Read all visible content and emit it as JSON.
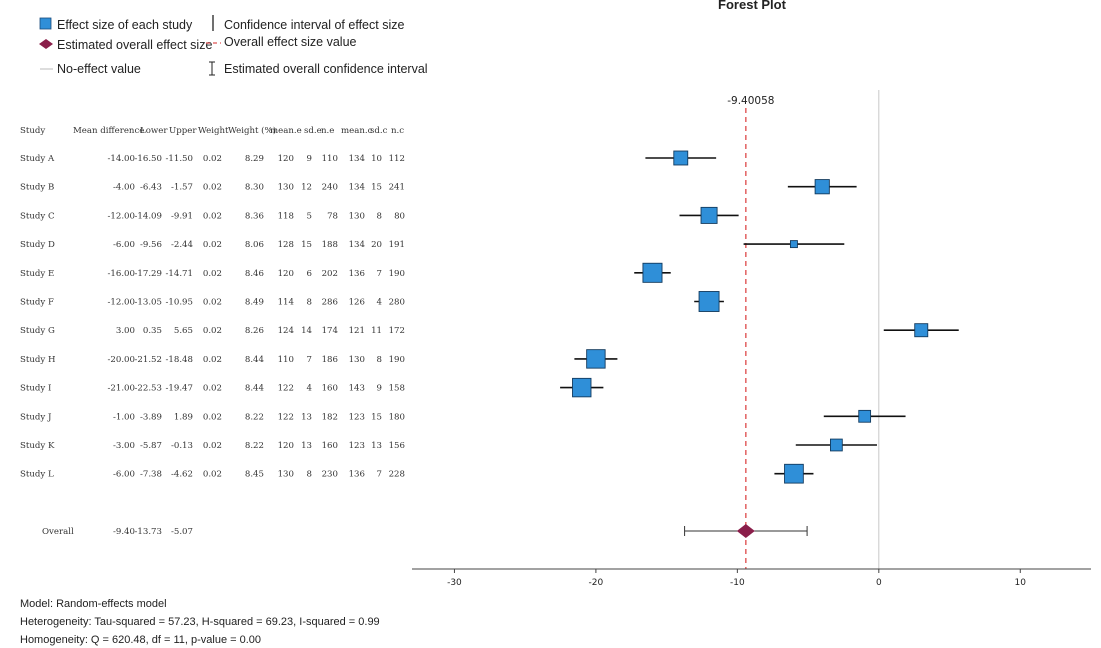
{
  "legend": {
    "effect_size": "Effect size of each study",
    "overall_effect": "Estimated overall effect size",
    "no_effect": "No-effect value",
    "ci": "Confidence interval of effect size",
    "overall_value": "Overall effect size value",
    "overall_ci": "Estimated overall confidence interval"
  },
  "colors": {
    "study_box": "#2f8fd8",
    "diamond": "#8a1e4a",
    "overall_line": "#e05555",
    "no_effect_line": "#c8c8c8"
  },
  "table": {
    "headers": [
      "Study",
      "Mean difference",
      "Lower",
      "Upper",
      "Weight",
      "Weight (%)",
      "mean.e",
      "sd.e",
      "n.e",
      "mean.c",
      "sd.c",
      "n.c"
    ],
    "rows": [
      [
        "Study A",
        "-14.00",
        "-16.50",
        "-11.50",
        "0.02",
        "8.29",
        "120",
        "9",
        "110",
        "134",
        "10",
        "112"
      ],
      [
        "Study B",
        "-4.00",
        "-6.43",
        "-1.57",
        "0.02",
        "8.30",
        "130",
        "12",
        "240",
        "134",
        "15",
        "241"
      ],
      [
        "Study C",
        "-12.00",
        "-14.09",
        "-9.91",
        "0.02",
        "8.36",
        "118",
        "5",
        "78",
        "130",
        "8",
        "80"
      ],
      [
        "Study D",
        "-6.00",
        "-9.56",
        "-2.44",
        "0.02",
        "8.06",
        "128",
        "15",
        "188",
        "134",
        "20",
        "191"
      ],
      [
        "Study E",
        "-16.00",
        "-17.29",
        "-14.71",
        "0.02",
        "8.46",
        "120",
        "6",
        "202",
        "136",
        "7",
        "190"
      ],
      [
        "Study F",
        "-12.00",
        "-13.05",
        "-10.95",
        "0.02",
        "8.49",
        "114",
        "8",
        "286",
        "126",
        "4",
        "280"
      ],
      [
        "Study G",
        "3.00",
        "0.35",
        "5.65",
        "0.02",
        "8.26",
        "124",
        "14",
        "174",
        "121",
        "11",
        "172"
      ],
      [
        "Study H",
        "-20.00",
        "-21.52",
        "-18.48",
        "0.02",
        "8.44",
        "110",
        "7",
        "186",
        "130",
        "8",
        "190"
      ],
      [
        "Study I",
        "-21.00",
        "-22.53",
        "-19.47",
        "0.02",
        "8.44",
        "122",
        "4",
        "160",
        "143",
        "9",
        "158"
      ],
      [
        "Study J",
        "-1.00",
        "-3.89",
        "1.89",
        "0.02",
        "8.22",
        "122",
        "13",
        "182",
        "123",
        "15",
        "180"
      ],
      [
        "Study K",
        "-3.00",
        "-5.87",
        "-0.13",
        "0.02",
        "8.22",
        "120",
        "13",
        "160",
        "123",
        "13",
        "156"
      ],
      [
        "Study L",
        "-6.00",
        "-7.38",
        "-4.62",
        "0.02",
        "8.45",
        "130",
        "8",
        "230",
        "136",
        "7",
        "228"
      ]
    ],
    "overall": [
      "Overall",
      "-9.40",
      "-13.73",
      "-5.07"
    ]
  },
  "chart_data": {
    "type": "scatter",
    "title": "Forest Plot",
    "xlim": [
      -33,
      15
    ],
    "xticks": [
      -30,
      -20,
      -10,
      0,
      10
    ],
    "no_effect_value": 0,
    "overall_effect_label": "-9.40058",
    "studies": [
      {
        "name": "Study A",
        "effect": -14.0,
        "lower": -16.5,
        "upper": -11.5,
        "weight_pct": 8.29
      },
      {
        "name": "Study B",
        "effect": -4.0,
        "lower": -6.43,
        "upper": -1.57,
        "weight_pct": 8.3
      },
      {
        "name": "Study C",
        "effect": -12.0,
        "lower": -14.09,
        "upper": -9.91,
        "weight_pct": 8.36
      },
      {
        "name": "Study D",
        "effect": -6.0,
        "lower": -9.56,
        "upper": -2.44,
        "weight_pct": 8.06
      },
      {
        "name": "Study E",
        "effect": -16.0,
        "lower": -17.29,
        "upper": -14.71,
        "weight_pct": 8.46
      },
      {
        "name": "Study F",
        "effect": -12.0,
        "lower": -13.05,
        "upper": -10.95,
        "weight_pct": 8.49
      },
      {
        "name": "Study G",
        "effect": 3.0,
        "lower": 0.35,
        "upper": 5.65,
        "weight_pct": 8.26
      },
      {
        "name": "Study H",
        "effect": -20.0,
        "lower": -21.52,
        "upper": -18.48,
        "weight_pct": 8.44
      },
      {
        "name": "Study I",
        "effect": -21.0,
        "lower": -22.53,
        "upper": -19.47,
        "weight_pct": 8.44
      },
      {
        "name": "Study J",
        "effect": -1.0,
        "lower": -3.89,
        "upper": 1.89,
        "weight_pct": 8.22
      },
      {
        "name": "Study K",
        "effect": -3.0,
        "lower": -5.87,
        "upper": -0.13,
        "weight_pct": 8.22
      },
      {
        "name": "Study L",
        "effect": -6.0,
        "lower": -7.38,
        "upper": -4.62,
        "weight_pct": 8.45
      }
    ],
    "overall": {
      "effect": -9.40058,
      "lower": -13.73,
      "upper": -5.07
    }
  },
  "footer": {
    "model": "Model: Random-effects model",
    "heterogeneity": "Heterogeneity: Tau-squared = 57.23, H-squared = 69.23, I-squared = 0.99",
    "homogeneity": "Homogeneity: Q = 620.48, df = 11, p-value = 0.00"
  }
}
